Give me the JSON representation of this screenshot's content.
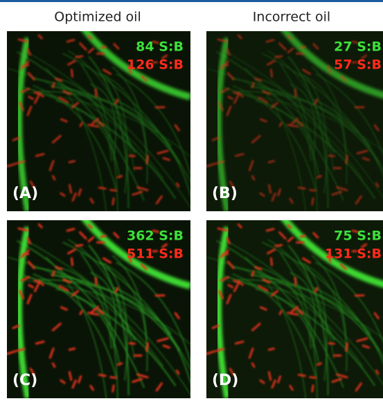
{
  "headers": [
    "Optimized oil",
    "Incorrect oil"
  ],
  "panels": [
    {
      "label": "(A)",
      "green": "84 S:B",
      "red": "126 S:B"
    },
    {
      "label": "(B)",
      "green": "27 S:B",
      "red": "57 S:B"
    },
    {
      "label": "(C)",
      "green": "362 S:B",
      "red": "511 S:B"
    },
    {
      "label": "(D)",
      "green": "75 S:B",
      "red": "131 S:B"
    }
  ]
}
